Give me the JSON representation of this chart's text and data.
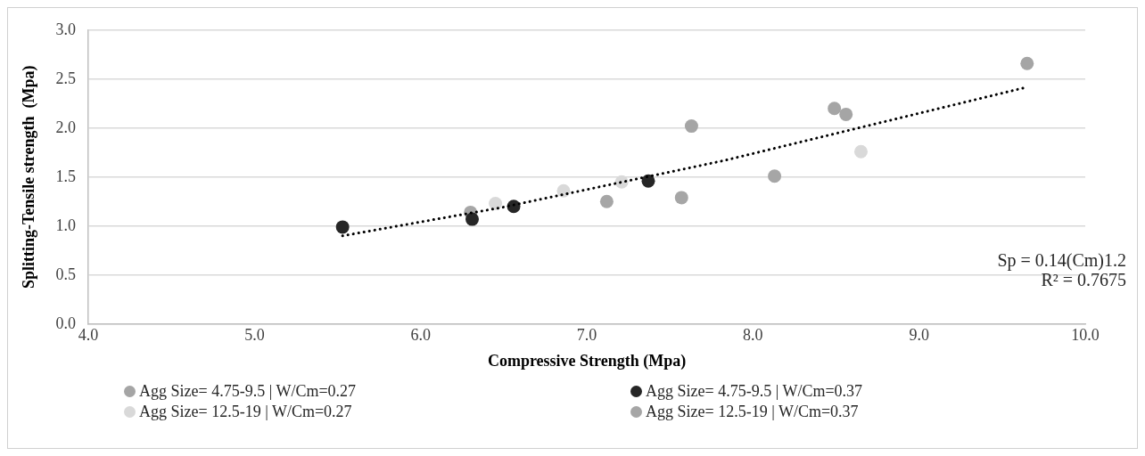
{
  "chart_data": {
    "type": "scatter",
    "xlabel": "Compressive Strength (Mpa)",
    "ylabel": "Splitting-Tensile strength  (Mpa)",
    "xlim": [
      4,
      10
    ],
    "xticks": [
      {
        "value": 4,
        "label": "4.0"
      },
      {
        "value": 5,
        "label": "5.0"
      },
      {
        "value": 6,
        "label": "6.0"
      },
      {
        "value": 7,
        "label": "7.0"
      },
      {
        "value": 8,
        "label": "8.0"
      },
      {
        "value": 9,
        "label": "9.0"
      },
      {
        "value": 10,
        "label": "10.0"
      }
    ],
    "ylim": [
      0,
      3
    ],
    "yticks": [
      {
        "value": 0,
        "label": "0.0"
      },
      {
        "value": 0.5,
        "label": "0.5"
      },
      {
        "value": 1,
        "label": "1.0"
      },
      {
        "value": 1.5,
        "label": "1.5"
      },
      {
        "value": 2,
        "label": "2.0"
      },
      {
        "value": 2.5,
        "label": "2.5"
      },
      {
        "value": 3,
        "label": "3.0"
      }
    ],
    "grid": "y",
    "legend": "bottom",
    "marker": "circle",
    "series": [
      {
        "name": "Agg Size= 4.75-9.5 | W/Cm=0.27",
        "color": "#a5a5a5",
        "x": [
          7.63,
          8.49,
          8.56,
          9.65
        ],
        "values": [
          2.02,
          2.2,
          2.14,
          2.66
        ]
      },
      {
        "name": "Agg Size= 4.75-9.5 | W/Cm=0.37",
        "color": "#262626",
        "x": [
          5.53,
          6.31,
          6.56,
          7.37
        ],
        "values": [
          0.99,
          1.07,
          1.2,
          1.46
        ]
      },
      {
        "name": "Agg Size= 12.5-19 | W/Cm=0.27",
        "color": "#d9d9d9",
        "x": [
          6.45,
          6.86,
          7.21,
          8.65
        ],
        "values": [
          1.23,
          1.36,
          1.45,
          1.76
        ]
      },
      {
        "name": "Agg Size= 12.5-19 | W/Cm=0.37",
        "color": "#a6a6a6",
        "x": [
          6.3,
          7.12,
          7.57,
          8.13
        ],
        "values": [
          1.14,
          1.25,
          1.29,
          1.51
        ]
      },
      {
        "type": "line",
        "color": "#000000",
        "line_style": "dotted",
        "marker": "none",
        "x": [
          5.53,
          6.49,
          7.83,
          9.63
        ],
        "values": [
          0.9,
          1.19,
          1.67,
          2.41
        ]
      }
    ],
    "annotations": [
      "Sp = 0.14(Cm)1.2",
      "R² = 0.7675"
    ]
  }
}
